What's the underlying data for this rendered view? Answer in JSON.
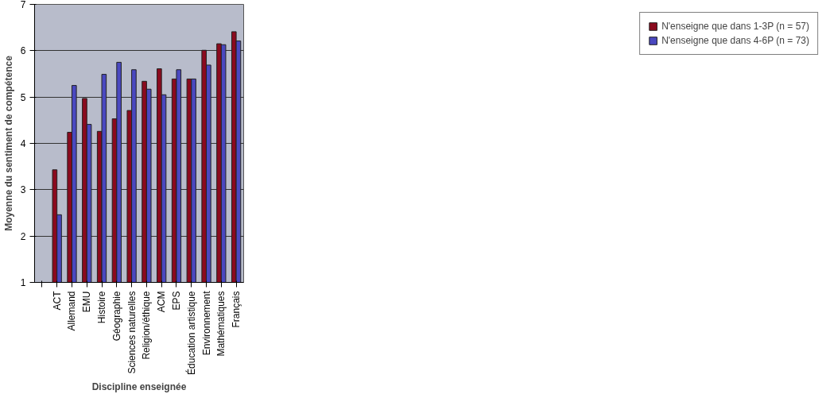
{
  "chart_data": {
    "type": "bar",
    "xlabel": "Discipline enseignée",
    "ylabel": "Moyenne du sentiment de compétence",
    "categories": [
      null,
      "ACT",
      "Allemand",
      "EMU",
      "Histoire",
      "Géographie",
      "Sciences naturelles",
      "Religion/éthique",
      "ACM",
      "EPS",
      "Éducation artistique",
      "Environnement",
      "Mathématiques",
      "Français"
    ],
    "series": [
      {
        "name": "N'enseigne que dans 1-3P (n = 57)",
        "color": "#8b0a1e",
        "values": [
          null,
          3.43,
          4.24,
          4.97,
          4.26,
          4.53,
          4.71,
          5.34,
          5.61,
          5.39,
          5.39,
          6.01,
          6.15,
          6.41
        ]
      },
      {
        "name": "N'enseigne que dans 4-6P (n = 73)",
        "color": "#4a48c0",
        "values": [
          null,
          2.46,
          5.25,
          4.41,
          5.49,
          5.75,
          5.59,
          5.17,
          5.05,
          5.59,
          5.39,
          5.69,
          6.13,
          6.21
        ]
      }
    ],
    "ylim": [
      1,
      7
    ],
    "yticks": [
      1,
      2,
      3,
      4,
      5,
      6,
      7
    ],
    "grid": "y",
    "legend": "right"
  }
}
